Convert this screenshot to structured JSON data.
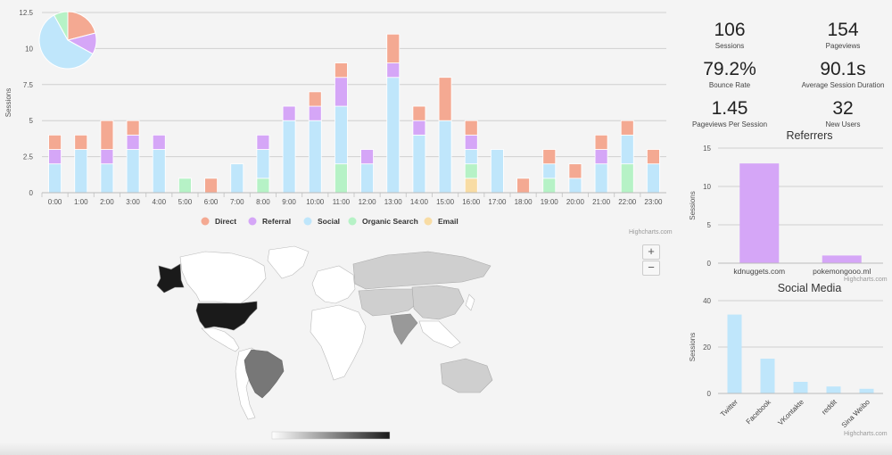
{
  "sessions_chart": {
    "ylabel": "Sessions",
    "y_ticks": [
      "0",
      "2.5",
      "5",
      "7.5",
      "10",
      "12.5"
    ],
    "colors": {
      "Direct": "#f4a992",
      "Referral": "#d5a6f7",
      "Social": "#bfe6fb",
      "Organic Search": "#b6f2c6",
      "Email": "#f8dca4"
    },
    "legend": [
      "Direct",
      "Referral",
      "Social",
      "Organic Search",
      "Email"
    ],
    "credit": "Highcharts.com"
  },
  "chart_data": [
    {
      "type": "bar",
      "stacked": true,
      "ylabel": "Sessions",
      "ylim": [
        0,
        12.5
      ],
      "grid": true,
      "legend_position": "bottom-center",
      "categories": [
        "0:00",
        "1:00",
        "2:00",
        "3:00",
        "4:00",
        "5:00",
        "6:00",
        "7:00",
        "8:00",
        "9:00",
        "10:00",
        "11:00",
        "12:00",
        "13:00",
        "14:00",
        "15:00",
        "16:00",
        "17:00",
        "18:00",
        "19:00",
        "20:00",
        "21:00",
        "22:00",
        "23:00"
      ],
      "series": [
        {
          "name": "Email",
          "values": [
            0,
            0,
            0,
            0,
            0,
            0,
            0,
            0,
            0,
            0,
            0,
            0,
            0,
            0,
            0,
            0,
            1,
            0,
            0,
            0,
            0,
            0,
            0,
            0
          ]
        },
        {
          "name": "Organic Search",
          "values": [
            0,
            0,
            0,
            0,
            0,
            1,
            0,
            0,
            1,
            0,
            0,
            2,
            0,
            0,
            0,
            0,
            1,
            0,
            0,
            1,
            0,
            0,
            2,
            0
          ]
        },
        {
          "name": "Social",
          "values": [
            2,
            3,
            2,
            3,
            3,
            0,
            0,
            2,
            2,
            5,
            5,
            4,
            2,
            8,
            4,
            5,
            1,
            3,
            0,
            1,
            1,
            2,
            2,
            2
          ]
        },
        {
          "name": "Referral",
          "values": [
            1,
            0,
            1,
            1,
            1,
            0,
            0,
            0,
            1,
            1,
            1,
            2,
            1,
            1,
            1,
            0,
            1,
            0,
            0,
            0,
            0,
            1,
            0,
            0
          ]
        },
        {
          "name": "Direct",
          "values": [
            1,
            1,
            2,
            1,
            0,
            0,
            1,
            0,
            0,
            0,
            1,
            1,
            0,
            2,
            1,
            3,
            1,
            0,
            1,
            1,
            1,
            1,
            1,
            1
          ]
        }
      ]
    },
    {
      "type": "pie",
      "categories": [
        "Direct",
        "Referral",
        "Social",
        "Organic Search"
      ],
      "values": [
        21,
        12,
        59,
        8
      ]
    },
    {
      "type": "bar",
      "title": "Referrers",
      "ylabel": "Sessions",
      "ylim": [
        0,
        15
      ],
      "categories": [
        "kdnuggets.com",
        "pokemongooo.ml"
      ],
      "values": [
        13,
        1
      ],
      "color": "#d5a6f7"
    },
    {
      "type": "bar",
      "title": "Social Media",
      "ylabel": "Sessions",
      "ylim": [
        0,
        40
      ],
      "categories": [
        "Twitter",
        "Facebook",
        "VKontakte",
        "reddit",
        "Sina Weibo"
      ],
      "values": [
        34,
        15,
        5,
        3,
        2
      ],
      "color": "#bfe6fb"
    }
  ],
  "kpis": [
    {
      "value": "106",
      "label": "Sessions"
    },
    {
      "value": "154",
      "label": "Pageviews"
    },
    {
      "value": "79.2%",
      "label": "Bounce Rate"
    },
    {
      "value": "90.1s",
      "label": "Average Session Duration"
    },
    {
      "value": "1.45",
      "label": "Pageviews Per Session"
    },
    {
      "value": "32",
      "label": "New Users"
    }
  ],
  "referrers": {
    "title": "Referrers",
    "ylabel": "Sessions",
    "y_ticks": [
      "0",
      "5",
      "10",
      "15"
    ],
    "credit": "Highcharts.com"
  },
  "social_media": {
    "title": "Social Media",
    "ylabel": "Sessions",
    "y_ticks": [
      "0",
      "20",
      "40"
    ],
    "credit": "Highcharts.com"
  },
  "map": {
    "zoom_in": "+",
    "zoom_out": "−",
    "scale_min": "0",
    "scale_max": "26",
    "colors": {
      "high": "#1a1a1a",
      "mid": "#777777",
      "low": "#cfcfcf",
      "none": "#ffffff"
    }
  }
}
